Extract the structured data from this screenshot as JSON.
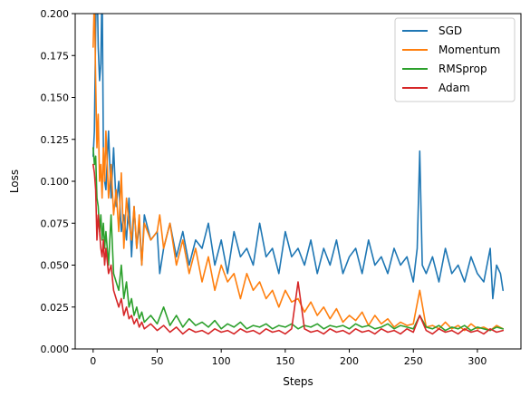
{
  "chart_data": {
    "type": "line",
    "title": "",
    "xlabel": "Steps",
    "ylabel": "Loss",
    "xlim": [
      -14,
      334
    ],
    "ylim": [
      0,
      0.2
    ],
    "x_ticks": [
      0,
      50,
      100,
      150,
      200,
      250,
      300
    ],
    "x_tick_labels": [
      "0",
      "50",
      "100",
      "150",
      "200",
      "250",
      "300"
    ],
    "y_ticks": [
      0,
      0.025,
      0.05,
      0.075,
      0.1,
      0.125,
      0.15,
      0.175,
      0.2
    ],
    "y_tick_labels": [
      "0.000",
      "0.025",
      "0.050",
      "0.075",
      "0.100",
      "0.125",
      "0.150",
      "0.175",
      "0.200"
    ],
    "grid": false,
    "legend_position": "top-right",
    "series": [
      {
        "name": "SGD",
        "color": "#1f77b4",
        "x": [
          0,
          1,
          2,
          3,
          4,
          5,
          6,
          7,
          8,
          9,
          10,
          12,
          14,
          16,
          18,
          20,
          22,
          24,
          26,
          28,
          30,
          32,
          34,
          36,
          38,
          40,
          45,
          50,
          52,
          55,
          60,
          65,
          70,
          75,
          80,
          85,
          90,
          95,
          100,
          105,
          110,
          115,
          120,
          125,
          130,
          135,
          140,
          145,
          150,
          155,
          160,
          165,
          170,
          175,
          180,
          185,
          190,
          195,
          200,
          205,
          210,
          215,
          220,
          225,
          230,
          235,
          240,
          245,
          250,
          253,
          255,
          257,
          260,
          265,
          270,
          275,
          280,
          285,
          290,
          295,
          300,
          305,
          310,
          312,
          315,
          318,
          320
        ],
        "y": [
          0.115,
          0.13,
          0.19,
          0.23,
          0.18,
          0.16,
          0.17,
          0.22,
          0.12,
          0.1,
          0.095,
          0.13,
          0.09,
          0.12,
          0.085,
          0.1,
          0.07,
          0.08,
          0.065,
          0.09,
          0.055,
          0.085,
          0.06,
          0.075,
          0.05,
          0.08,
          0.065,
          0.07,
          0.045,
          0.06,
          0.075,
          0.055,
          0.07,
          0.05,
          0.065,
          0.06,
          0.075,
          0.05,
          0.065,
          0.045,
          0.07,
          0.055,
          0.06,
          0.05,
          0.075,
          0.055,
          0.06,
          0.045,
          0.07,
          0.055,
          0.06,
          0.05,
          0.065,
          0.045,
          0.06,
          0.05,
          0.065,
          0.045,
          0.055,
          0.06,
          0.045,
          0.065,
          0.05,
          0.055,
          0.045,
          0.06,
          0.05,
          0.055,
          0.04,
          0.06,
          0.118,
          0.05,
          0.045,
          0.055,
          0.04,
          0.06,
          0.045,
          0.05,
          0.04,
          0.055,
          0.045,
          0.04,
          0.06,
          0.03,
          0.05,
          0.045,
          0.035
        ]
      },
      {
        "name": "Momentum",
        "color": "#ff7f0e",
        "x": [
          0,
          1,
          2,
          3,
          4,
          5,
          6,
          7,
          8,
          9,
          10,
          12,
          14,
          16,
          18,
          20,
          22,
          24,
          26,
          28,
          30,
          32,
          34,
          36,
          38,
          40,
          45,
          50,
          52,
          55,
          60,
          65,
          70,
          75,
          80,
          85,
          90,
          95,
          100,
          105,
          110,
          115,
          120,
          125,
          130,
          135,
          140,
          145,
          150,
          155,
          160,
          165,
          170,
          175,
          180,
          185,
          190,
          195,
          200,
          205,
          210,
          215,
          220,
          225,
          230,
          235,
          240,
          245,
          250,
          255,
          260,
          265,
          270,
          275,
          280,
          285,
          290,
          295,
          300,
          305,
          310,
          315,
          320
        ],
        "y": [
          0.18,
          0.21,
          0.16,
          0.12,
          0.14,
          0.1,
          0.11,
          0.09,
          0.12,
          0.1,
          0.13,
          0.09,
          0.11,
          0.08,
          0.095,
          0.07,
          0.105,
          0.06,
          0.09,
          0.075,
          0.065,
          0.085,
          0.06,
          0.08,
          0.05,
          0.075,
          0.065,
          0.07,
          0.08,
          0.06,
          0.075,
          0.05,
          0.065,
          0.045,
          0.06,
          0.04,
          0.055,
          0.035,
          0.05,
          0.04,
          0.045,
          0.03,
          0.045,
          0.035,
          0.04,
          0.03,
          0.035,
          0.025,
          0.035,
          0.028,
          0.03,
          0.022,
          0.028,
          0.02,
          0.025,
          0.018,
          0.024,
          0.016,
          0.02,
          0.017,
          0.022,
          0.014,
          0.02,
          0.015,
          0.018,
          0.013,
          0.016,
          0.014,
          0.015,
          0.035,
          0.013,
          0.014,
          0.012,
          0.016,
          0.012,
          0.014,
          0.011,
          0.015,
          0.012,
          0.013,
          0.011,
          0.014,
          0.012
        ]
      },
      {
        "name": "RMSprop",
        "color": "#2ca02c",
        "x": [
          0,
          1,
          2,
          3,
          4,
          5,
          6,
          7,
          8,
          9,
          10,
          12,
          14,
          16,
          18,
          20,
          22,
          24,
          26,
          28,
          30,
          32,
          34,
          36,
          38,
          40,
          45,
          50,
          55,
          60,
          65,
          70,
          75,
          80,
          85,
          90,
          95,
          100,
          105,
          110,
          115,
          120,
          125,
          130,
          135,
          140,
          145,
          150,
          155,
          160,
          165,
          170,
          175,
          180,
          185,
          190,
          195,
          200,
          205,
          210,
          215,
          220,
          225,
          230,
          235,
          240,
          245,
          250,
          255,
          260,
          265,
          270,
          275,
          280,
          285,
          290,
          295,
          300,
          305,
          310,
          315,
          320
        ],
        "y": [
          0.12,
          0.11,
          0.115,
          0.09,
          0.085,
          0.07,
          0.08,
          0.065,
          0.075,
          0.06,
          0.07,
          0.05,
          0.08,
          0.045,
          0.04,
          0.035,
          0.05,
          0.03,
          0.04,
          0.025,
          0.03,
          0.02,
          0.025,
          0.018,
          0.022,
          0.016,
          0.02,
          0.015,
          0.025,
          0.014,
          0.02,
          0.013,
          0.018,
          0.014,
          0.016,
          0.013,
          0.017,
          0.012,
          0.015,
          0.013,
          0.016,
          0.012,
          0.014,
          0.013,
          0.015,
          0.012,
          0.014,
          0.013,
          0.015,
          0.012,
          0.014,
          0.013,
          0.015,
          0.012,
          0.014,
          0.013,
          0.014,
          0.012,
          0.015,
          0.013,
          0.014,
          0.012,
          0.013,
          0.015,
          0.012,
          0.014,
          0.013,
          0.012,
          0.02,
          0.013,
          0.012,
          0.014,
          0.011,
          0.013,
          0.012,
          0.014,
          0.011,
          0.013,
          0.012,
          0.011,
          0.013,
          0.012
        ]
      },
      {
        "name": "Adam",
        "color": "#d62728",
        "x": [
          0,
          1,
          2,
          3,
          4,
          5,
          6,
          7,
          8,
          9,
          10,
          12,
          14,
          16,
          18,
          20,
          22,
          24,
          26,
          28,
          30,
          32,
          34,
          36,
          38,
          40,
          45,
          50,
          55,
          60,
          65,
          70,
          75,
          80,
          85,
          90,
          95,
          100,
          105,
          110,
          115,
          120,
          125,
          130,
          135,
          140,
          145,
          150,
          155,
          160,
          165,
          170,
          175,
          180,
          185,
          190,
          195,
          200,
          205,
          210,
          215,
          220,
          225,
          230,
          235,
          240,
          245,
          250,
          255,
          260,
          265,
          270,
          275,
          280,
          285,
          290,
          295,
          300,
          305,
          310,
          315,
          320
        ],
        "y": [
          0.11,
          0.105,
          0.095,
          0.065,
          0.08,
          0.07,
          0.06,
          0.055,
          0.065,
          0.05,
          0.06,
          0.045,
          0.05,
          0.035,
          0.03,
          0.025,
          0.03,
          0.02,
          0.025,
          0.018,
          0.02,
          0.015,
          0.018,
          0.013,
          0.016,
          0.012,
          0.015,
          0.011,
          0.014,
          0.01,
          0.013,
          0.009,
          0.012,
          0.01,
          0.011,
          0.009,
          0.012,
          0.01,
          0.011,
          0.009,
          0.012,
          0.01,
          0.011,
          0.009,
          0.012,
          0.01,
          0.011,
          0.009,
          0.012,
          0.04,
          0.012,
          0.01,
          0.011,
          0.009,
          0.012,
          0.01,
          0.011,
          0.009,
          0.012,
          0.01,
          0.011,
          0.009,
          0.012,
          0.01,
          0.011,
          0.009,
          0.012,
          0.01,
          0.02,
          0.011,
          0.009,
          0.012,
          0.01,
          0.011,
          0.009,
          0.012,
          0.01,
          0.011,
          0.009,
          0.012,
          0.01,
          0.011
        ]
      }
    ]
  }
}
